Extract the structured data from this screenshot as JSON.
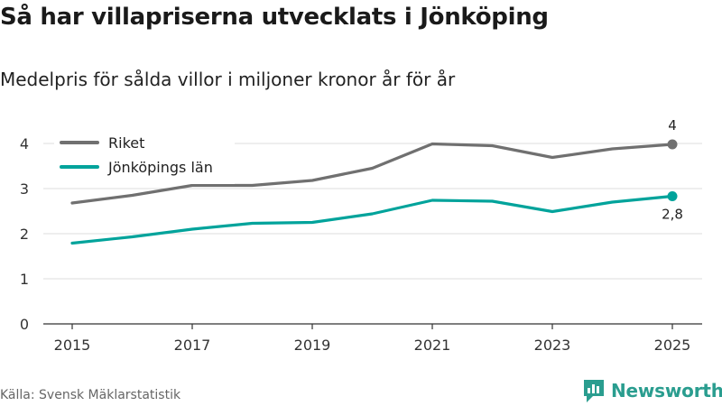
{
  "title": "Så har villapriserna utvecklats i Jönköping",
  "subtitle": "Medelpris för sålda villor i miljoner kronor år för år",
  "source": "Källa: Svensk Mäklarstatistik",
  "brand": {
    "name": "Newsworthy",
    "icon": "newsworthy-logo-icon",
    "color": "#2a9d8f"
  },
  "chart_data": {
    "type": "line",
    "x": [
      2015,
      2016,
      2017,
      2018,
      2019,
      2020,
      2021,
      2022,
      2023,
      2024,
      2025
    ],
    "xticks": [
      "2015",
      "2017",
      "2019",
      "2021",
      "2023",
      "2025"
    ],
    "yticks": [
      "0",
      "1",
      "2",
      "3",
      "4"
    ],
    "ylim": [
      0,
      4.4
    ],
    "grid": true,
    "legend_position": "top-left",
    "series": [
      {
        "name": "Riket",
        "color": "#707070",
        "values": [
          2.68,
          2.85,
          3.07,
          3.07,
          3.18,
          3.45,
          3.99,
          3.95,
          3.69,
          3.88,
          3.98
        ],
        "end_label": "4"
      },
      {
        "name": "Jönköpings län",
        "color": "#00a39b",
        "values": [
          1.79,
          1.93,
          2.1,
          2.23,
          2.25,
          2.44,
          2.74,
          2.72,
          2.49,
          2.7,
          2.83
        ],
        "end_label": "2,8"
      }
    ]
  }
}
